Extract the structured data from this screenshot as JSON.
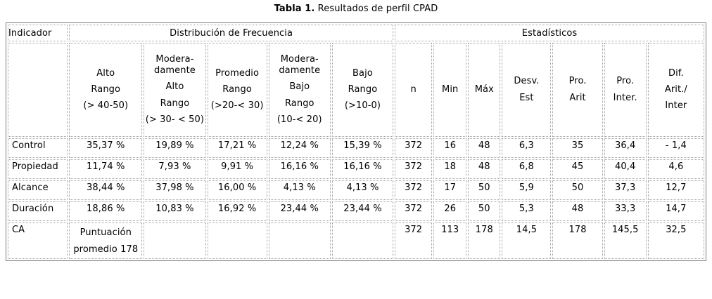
{
  "title": {
    "bold": "Tabla 1.",
    "rest": " Resultados de perfil CPAD"
  },
  "colors": {
    "background": "#ffffff",
    "text": "#000000",
    "outer_border": "#7e7e7e",
    "cell_border": "#a0a0a0"
  },
  "table": {
    "group_headers": {
      "indicador": "Indicador",
      "frecuencia": "Distribución de Frecuencia",
      "estadisticos": "Estadísticos"
    },
    "freq_columns": [
      {
        "lines": [
          "Alto",
          "Rango",
          "(> 40-50)"
        ]
      },
      {
        "lines": [
          "Modera-\ndamente",
          "Alto",
          "Rango",
          "(> 30- < 50)"
        ]
      },
      {
        "lines": [
          "Promedio",
          "Rango",
          "(>20-< 30)"
        ]
      },
      {
        "lines": [
          "Modera-\ndamente",
          "Bajo",
          "Rango",
          "(10-< 20)"
        ]
      },
      {
        "lines": [
          "Bajo",
          "Rango",
          "(>10-0)"
        ]
      }
    ],
    "stat_columns": [
      {
        "lines": [
          "n"
        ]
      },
      {
        "lines": [
          "Min"
        ]
      },
      {
        "lines": [
          "Máx"
        ]
      },
      {
        "lines": [
          "Desv.",
          "Est"
        ]
      },
      {
        "lines": [
          "Pro.",
          "Arit"
        ]
      },
      {
        "lines": [
          "Pro.",
          "Inter."
        ]
      },
      {
        "lines": [
          "Dif.",
          "Arit./",
          "Inter"
        ]
      }
    ],
    "rows": [
      {
        "label": "Control",
        "freq": [
          "35,37 %",
          "19,89 %",
          "17,21 %",
          "12,24 %",
          "15,39 %"
        ],
        "stats": [
          "372",
          "16",
          "48",
          "6,3",
          "35",
          "36,4",
          "- 1,4"
        ]
      },
      {
        "label": "Propiedad",
        "freq": [
          "11,74 %",
          "7,93 %",
          "9,91 %",
          "16,16 %",
          "16,16 %"
        ],
        "stats": [
          "372",
          "18",
          "48",
          "6,8",
          "45",
          "40,4",
          "4,6"
        ]
      },
      {
        "label": "Alcance",
        "freq": [
          "38,44 %",
          "37,98 %",
          "16,00 %",
          "4,13 %",
          "4,13 %"
        ],
        "stats": [
          "372",
          "17",
          "50",
          "5,9",
          "50",
          "37,3",
          "12,7"
        ]
      },
      {
        "label": "Duración",
        "freq": [
          "18,86 %",
          "10,83 %",
          "16,92 %",
          "23,44 %",
          "23,44 %"
        ],
        "stats": [
          "372",
          "26",
          "50",
          "5,3",
          "48",
          "33,3",
          "14,7"
        ]
      },
      {
        "label": "CA",
        "freq": [
          "Puntuación\npromedio 178",
          "",
          "",
          "",
          ""
        ],
        "stats": [
          "372",
          "113",
          "178",
          "14,5",
          "178",
          "145,5",
          "32,5"
        ]
      }
    ]
  }
}
